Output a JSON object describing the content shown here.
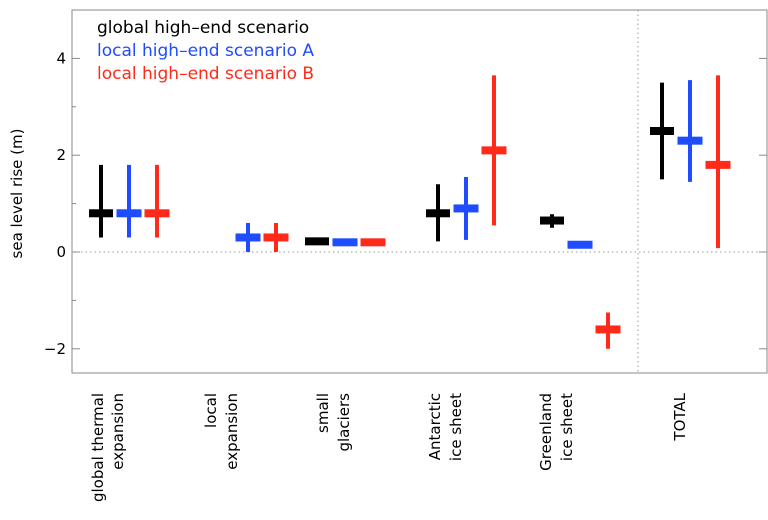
{
  "chart_data": {
    "type": "errorbar",
    "title": "",
    "xlabel": "",
    "ylabel": "sea level rise (m)",
    "ylim": [
      -2.5,
      5.0
    ],
    "yticks": [
      -2,
      0,
      2,
      4
    ],
    "grid": false,
    "zero_line": "dotted",
    "separator_before_category": "TOTAL",
    "legend_placement": "top-left",
    "legend": [
      {
        "label": "global high–end scenario",
        "color": "#000000"
      },
      {
        "label": "local high–end scenario A",
        "color": "#1f4cff"
      },
      {
        "label": "local high–end scenario B",
        "color": "#ff2a1a"
      }
    ],
    "categories": [
      {
        "lines": [
          "global thermal",
          "expansion"
        ]
      },
      {
        "lines": [
          "local",
          "expansion"
        ]
      },
      {
        "lines": [
          "small",
          "glaciers"
        ]
      },
      {
        "lines": [
          "Antarctic",
          "ice sheet"
        ]
      },
      {
        "lines": [
          "Greenland",
          "ice sheet"
        ]
      },
      {
        "lines": [
          "TOTAL"
        ]
      }
    ],
    "series": [
      {
        "name": "global high–end scenario",
        "color": "#000000",
        "points": [
          {
            "category": 0,
            "value": 0.8,
            "low": 0.3,
            "high": 1.8
          },
          {
            "category": 2,
            "value": 0.22,
            "low": 0.15,
            "high": 0.3
          },
          {
            "category": 3,
            "value": 0.8,
            "low": 0.22,
            "high": 1.4
          },
          {
            "category": 4,
            "value": 0.65,
            "low": 0.5,
            "high": 0.78
          },
          {
            "category": 5,
            "value": 2.5,
            "low": 1.5,
            "high": 3.5
          }
        ]
      },
      {
        "name": "local high–end scenario A",
        "color": "#1f4cff",
        "points": [
          {
            "category": 0,
            "value": 0.8,
            "low": 0.3,
            "high": 1.8
          },
          {
            "category": 1,
            "value": 0.3,
            "low": 0.0,
            "high": 0.6
          },
          {
            "category": 2,
            "value": 0.2,
            "low": 0.2,
            "high": 0.2
          },
          {
            "category": 3,
            "value": 0.9,
            "low": 0.25,
            "high": 1.55
          },
          {
            "category": 4,
            "value": 0.15,
            "low": 0.15,
            "high": 0.15
          },
          {
            "category": 5,
            "value": 2.3,
            "low": 1.45,
            "high": 3.55
          }
        ]
      },
      {
        "name": "local high–end scenario B",
        "color": "#ff2a1a",
        "points": [
          {
            "category": 0,
            "value": 0.8,
            "low": 0.3,
            "high": 1.8
          },
          {
            "category": 1,
            "value": 0.3,
            "low": 0.0,
            "high": 0.6
          },
          {
            "category": 2,
            "value": 0.2,
            "low": 0.2,
            "high": 0.2
          },
          {
            "category": 3,
            "value": 2.1,
            "low": 0.55,
            "high": 3.65
          },
          {
            "category": 4,
            "value": -1.6,
            "low": -2.0,
            "high": -1.25
          },
          {
            "category": 5,
            "value": 1.8,
            "low": 0.08,
            "high": 3.65
          }
        ]
      }
    ]
  }
}
